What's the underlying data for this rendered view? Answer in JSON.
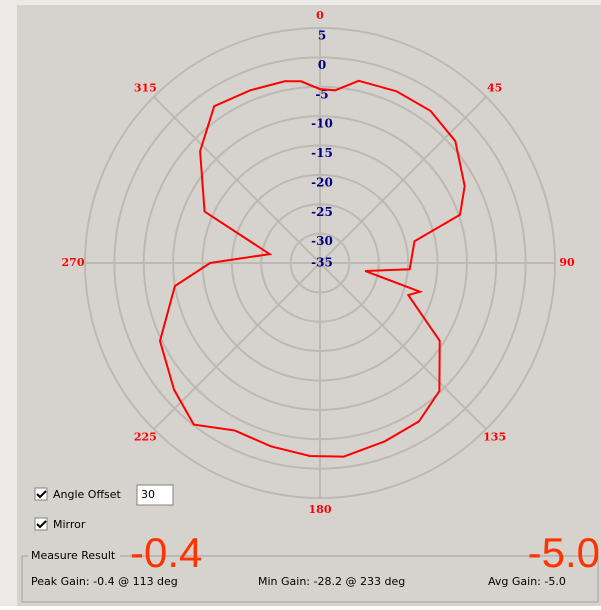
{
  "chart_data": {
    "type": "polar",
    "series": [
      {
        "name": null,
        "color": "#ff0000",
        "x": [
          0,
          5,
          12,
          24,
          36,
          48,
          62,
          71,
          77,
          94,
          100,
          106,
          110,
          123,
          137,
          148,
          160,
          173,
          183,
          195,
          207,
          218,
          229,
          244,
          261,
          270,
          280,
          294,
          313,
          326,
          338,
          349,
          354
        ],
        "values": [
          -5.4,
          -5.5,
          -3.3,
          -3.0,
          -3.0,
          -4.0,
          -7.1,
          -9.8,
          -18.5,
          -19.7,
          -27.2,
          -17.3,
          -19.0,
          -10.7,
          -5.2,
          -3.2,
          -2.7,
          -1.8,
          -2.1,
          -2.7,
          -3.0,
          -0.1,
          -2.1,
          -4.7,
          -10.0,
          -16.3,
          -26.3,
          -13.5,
          -7.1,
          -2.8,
          -3.3,
          -3.5,
          -3.9
        ]
      }
    ],
    "rlim": [
      -35,
      5
    ],
    "rticks": [
      -35,
      -30,
      -25,
      -20,
      -15,
      -10,
      -5,
      0,
      5
    ],
    "angle_ticks": [
      0,
      45,
      90,
      135,
      180,
      225,
      270,
      315
    ],
    "direction": "clockwise",
    "zero": "top",
    "grid": true
  },
  "ui": {
    "angle_offset": {
      "label": "Angle Offset",
      "value": "30",
      "checked": true
    },
    "mirror": {
      "label": "Mirror",
      "checked": true
    },
    "measure": {
      "title": "Measure Result",
      "peak_big": "-0.4",
      "avg_big": "-5.0",
      "peak": "Peak Gain: -0.4 @ 113 deg",
      "min": "Min Gain: -28.2 @ 233 deg",
      "avg": "Avg Gain: -5.0"
    }
  }
}
